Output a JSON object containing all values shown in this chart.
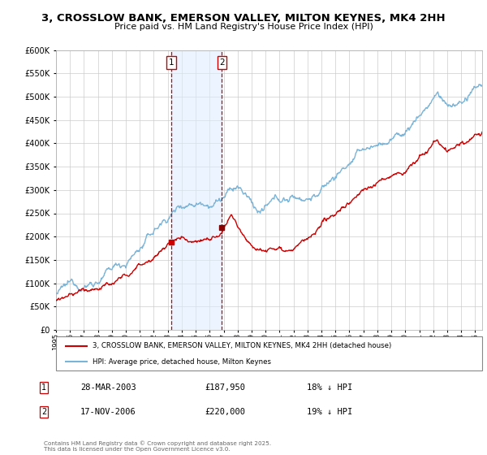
{
  "title": "3, CROSSLOW BANK, EMERSON VALLEY, MILTON KEYNES, MK4 2HH",
  "subtitle": "Price paid vs. HM Land Registry's House Price Index (HPI)",
  "legend_line1": "3, CROSSLOW BANK, EMERSON VALLEY, MILTON KEYNES, MK4 2HH (detached house)",
  "legend_line2": "HPI: Average price, detached house, Milton Keynes",
  "sale1_date": "28-MAR-2003",
  "sale1_price": 187950,
  "sale1_label": "18% ↓ HPI",
  "sale2_date": "17-NOV-2006",
  "sale2_price": 220000,
  "sale2_label": "19% ↓ HPI",
  "hpi_color": "#7ab4d8",
  "price_color": "#cc0000",
  "footnote": "Contains HM Land Registry data © Crown copyright and database right 2025.\nThis data is licensed under the Open Government Licence v3.0.",
  "ylim_max": 600000,
  "ylim_min": 0,
  "sale1_year": 2003.23,
  "sale2_year": 2006.88,
  "xmin": 1995,
  "xmax": 2025.5
}
